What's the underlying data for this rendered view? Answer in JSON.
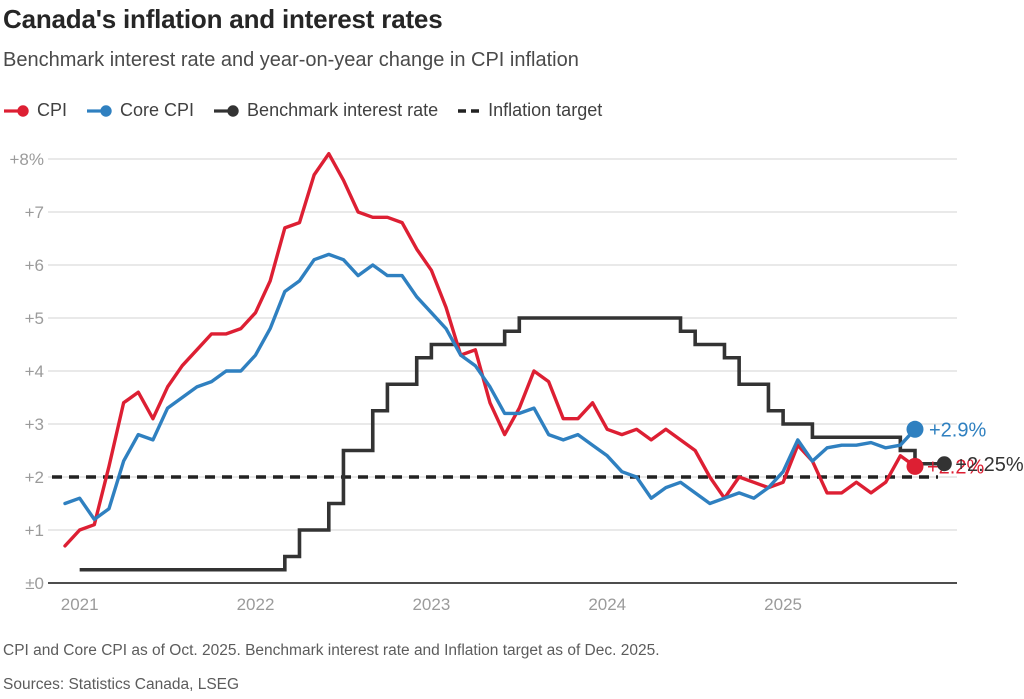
{
  "header": {
    "title": "Canada's inflation and interest rates",
    "subtitle": "Benchmark interest rate and year-on-year change in CPI inflation"
  },
  "legend": {
    "items": [
      {
        "label": "CPI",
        "color": "#dd1f33",
        "marker": "line-dot"
      },
      {
        "label": "Core CPI",
        "color": "#2f80c0",
        "marker": "line-dot"
      },
      {
        "label": "Benchmark interest rate",
        "color": "#333333",
        "marker": "line-dot"
      },
      {
        "label": "Inflation target",
        "color": "#222222",
        "marker": "dashes"
      }
    ]
  },
  "chart_data": {
    "type": "line",
    "title": "Canada's inflation and interest rates",
    "subtitle": "Benchmark interest rate and year-on-year change in CPI inflation",
    "x_start_month": "2020-12",
    "x_unit": "month",
    "ylim": [
      0,
      8.3
    ],
    "grid": "horizontal",
    "y_ticks": [
      {
        "value": 8,
        "label": "+8%"
      },
      {
        "value": 7,
        "label": "+7"
      },
      {
        "value": 6,
        "label": "+6"
      },
      {
        "value": 5,
        "label": "+5"
      },
      {
        "value": 4,
        "label": "+4"
      },
      {
        "value": 3,
        "label": "+3"
      },
      {
        "value": 2,
        "label": "+2"
      },
      {
        "value": 1,
        "label": "+1"
      },
      {
        "value": 0,
        "label": "±0"
      }
    ],
    "x_ticks": [
      {
        "label": "2021",
        "month_index": 1
      },
      {
        "label": "2022",
        "month_index": 13
      },
      {
        "label": "2023",
        "month_index": 25
      },
      {
        "label": "2024",
        "month_index": 37
      },
      {
        "label": "2025",
        "month_index": 49
      }
    ],
    "series": [
      {
        "name": "CPI",
        "type": "line",
        "color": "#dd1f33",
        "unit": "% year-on-year",
        "start_month_index": 0,
        "last_point": "Oct. 2025",
        "values": [
          0.7,
          1.0,
          1.1,
          2.2,
          3.4,
          3.6,
          3.1,
          3.7,
          4.1,
          4.4,
          4.7,
          4.7,
          4.8,
          5.1,
          5.7,
          6.7,
          6.8,
          7.7,
          8.1,
          7.6,
          7.0,
          6.9,
          6.9,
          6.8,
          6.3,
          5.9,
          5.2,
          4.3,
          4.4,
          3.4,
          2.8,
          3.3,
          4.0,
          3.8,
          3.1,
          3.1,
          3.4,
          2.9,
          2.8,
          2.9,
          2.7,
          2.9,
          2.7,
          2.5,
          2.0,
          1.6,
          2.0,
          1.9,
          1.8,
          1.9,
          2.6,
          2.3,
          1.7,
          1.7,
          1.9,
          1.7,
          1.9,
          2.4,
          2.2
        ]
      },
      {
        "name": "Core CPI",
        "type": "line",
        "color": "#2f80c0",
        "unit": "% year-on-year",
        "start_month_index": 0,
        "last_point": "Oct. 2025",
        "values": [
          1.5,
          1.6,
          1.2,
          1.4,
          2.3,
          2.8,
          2.7,
          3.3,
          3.5,
          3.7,
          3.8,
          4.0,
          4.0,
          4.3,
          4.8,
          5.5,
          5.7,
          6.1,
          6.2,
          6.1,
          5.8,
          6.0,
          5.8,
          5.8,
          5.4,
          5.1,
          4.8,
          4.3,
          4.1,
          3.7,
          3.2,
          3.2,
          3.3,
          2.8,
          2.7,
          2.8,
          2.6,
          2.4,
          2.1,
          2.0,
          1.6,
          1.8,
          1.9,
          1.7,
          1.5,
          1.6,
          1.7,
          1.6,
          1.8,
          2.1,
          2.7,
          2.3,
          2.55,
          2.6,
          2.6,
          2.65,
          2.55,
          2.6,
          2.9
        ]
      },
      {
        "name": "Benchmark interest rate",
        "type": "step",
        "color": "#333333",
        "unit": "%",
        "last_point": "Dec. 2025",
        "end_month_index": 60,
        "changes": [
          [
            1,
            0.25
          ],
          [
            15,
            0.5
          ],
          [
            16,
            1.0
          ],
          [
            18,
            1.5
          ],
          [
            19,
            2.5
          ],
          [
            21,
            3.25
          ],
          [
            22,
            3.75
          ],
          [
            24,
            4.25
          ],
          [
            25,
            4.5
          ],
          [
            30,
            4.75
          ],
          [
            31,
            5.0
          ],
          [
            42,
            4.75
          ],
          [
            43,
            4.5
          ],
          [
            45,
            4.25
          ],
          [
            46,
            3.75
          ],
          [
            48,
            3.25
          ],
          [
            49,
            3.0
          ],
          [
            51,
            2.75
          ],
          [
            57,
            2.5
          ],
          [
            58,
            2.25
          ]
        ]
      }
    ],
    "reference_line": {
      "name": "Inflation target",
      "value": 2,
      "style": "dashed",
      "color": "#222222"
    },
    "end_labels": [
      {
        "series": "Core CPI",
        "text": "+2.9%",
        "value": 2.9,
        "month_index": 58,
        "color": "#2f80c0"
      },
      {
        "series": "CPI",
        "text": "+2.2%",
        "value": 2.2,
        "month_index": 58,
        "color": "#dd1f33"
      },
      {
        "series": "Benchmark interest rate",
        "text": "+2.25%",
        "value": 2.25,
        "month_index": 60,
        "color": "#333333"
      }
    ]
  },
  "footnotes": {
    "note": "CPI and Core CPI as of Oct. 2025. Benchmark interest rate and Inflation target as of Dec. 2025.",
    "sources": "Sources: Statistics Canada, LSEG"
  }
}
